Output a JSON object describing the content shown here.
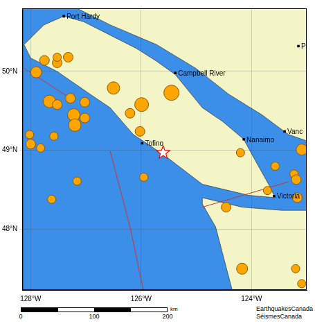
{
  "chart_data": {
    "type": "scatter",
    "xlim": [
      -128.15,
      -123.0
    ],
    "ylim": [
      47.23,
      50.8
    ],
    "xticks": [
      {
        "value": -128,
        "label": "128°W"
      },
      {
        "value": -126,
        "label": "126°W"
      },
      {
        "value": -124,
        "label": "124°W"
      }
    ],
    "yticks": [
      {
        "value": 48,
        "label": "48°N"
      },
      {
        "value": 49,
        "label": "49°N"
      },
      {
        "value": 50,
        "label": "50°N"
      }
    ],
    "grid": true,
    "tick_labels": true,
    "series": [
      {
        "type": "area",
        "color": "#f3f5c6",
        "polygons": [
          [
            [
              -128.12,
              50.34
            ],
            [
              -128.0,
              50.17
            ],
            [
              -127.52,
              50.0
            ],
            [
              -126.92,
              49.71
            ],
            [
              -126.56,
              49.54
            ],
            [
              -126.14,
              49.2
            ],
            [
              -125.6,
              48.95
            ],
            [
              -124.89,
              48.57
            ],
            [
              -124.05,
              48.43
            ],
            [
              -123.57,
              48.4
            ],
            [
              -123.69,
              48.57
            ],
            [
              -123.93,
              48.87
            ],
            [
              -124.14,
              49.14
            ],
            [
              -124.53,
              49.37
            ],
            [
              -124.89,
              49.54
            ],
            [
              -125.38,
              49.96
            ],
            [
              -125.72,
              50.13
            ],
            [
              -126.08,
              50.29
            ],
            [
              -126.56,
              50.46
            ],
            [
              -127.04,
              50.63
            ],
            [
              -127.4,
              50.7
            ],
            [
              -127.76,
              50.59
            ]
          ],
          [
            [
              -127.16,
              50.8
            ],
            [
              -126.56,
              50.59
            ],
            [
              -125.72,
              50.34
            ],
            [
              -125.01,
              50.04
            ],
            [
              -124.41,
              49.71
            ],
            [
              -123.81,
              49.45
            ],
            [
              -123.33,
              49.2
            ],
            [
              -123.0,
              49.12
            ],
            [
              -123.0,
              50.8
            ]
          ],
          [
            [
              -124.89,
              48.4
            ],
            [
              -124.17,
              48.28
            ],
            [
              -123.45,
              48.24
            ],
            [
              -123.0,
              48.24
            ],
            [
              -123.0,
              47.23
            ],
            [
              -124.35,
              47.23
            ],
            [
              -124.65,
              48.03
            ],
            [
              -124.89,
              48.32
            ]
          ]
        ]
      },
      {
        "type": "line",
        "color": "#cc3333",
        "lines": [
          [
            [
              -128.12,
              50.04
            ],
            [
              -127.28,
              49.66
            ]
          ],
          [
            [
              -126.56,
              48.99
            ],
            [
              -126.2,
              48.03
            ],
            [
              -125.96,
              47.23
            ]
          ],
          [
            [
              -124.89,
              48.28
            ],
            [
              -123.33,
              48.6
            ]
          ]
        ]
      },
      {
        "type": "scatter",
        "marker": "circle",
        "color": "#ffa500",
        "x": [
          -127.75,
          -127.52,
          -127.32,
          -127.52,
          -127.9,
          -128.02,
          -128.0,
          -127.82,
          -127.58,
          -127.66,
          -127.52,
          -127.28,
          -127.22,
          -127.2,
          -127.02,
          -127.02,
          -127.16,
          -127.62,
          -126.5,
          -126.2,
          -125.99,
          -125.45,
          -126.02,
          -125.95,
          -124.2,
          -123.57,
          -123.09,
          -123.23,
          -123.19,
          -123.71,
          -123.17,
          -124.46,
          -124.17,
          -123.2,
          -123.09
        ],
        "y": [
          50.14,
          50.11,
          50.18,
          50.18,
          49.99,
          49.2,
          49.08,
          49.03,
          49.18,
          49.62,
          49.58,
          49.66,
          49.45,
          49.32,
          49.41,
          49.61,
          48.61,
          48.38,
          49.79,
          49.47,
          49.58,
          49.73,
          49.24,
          48.66,
          48.97,
          48.8,
          49.01,
          48.7,
          48.63,
          48.49,
          48.4,
          48.28,
          47.5,
          47.5,
          47.31
        ],
        "sizes": [
          3.5,
          3.5,
          3.5,
          3.0,
          4.0,
          3.0,
          3.5,
          3.0,
          3.0,
          4.5,
          3.5,
          3.5,
          4.5,
          4.5,
          3.5,
          3.5,
          3.0,
          3.0,
          4.5,
          3.5,
          5.0,
          5.5,
          3.5,
          3.0,
          3.0,
          3.0,
          4.0,
          3.0,
          3.5,
          3.0,
          3.5,
          3.5,
          4.0,
          3.0,
          3.0
        ]
      },
      {
        "type": "scatter",
        "marker": "square",
        "color": "#000000",
        "x": [
          -127.4,
          -125.38,
          -125.98,
          -124.14,
          -123.4,
          -123.59,
          -123.15
        ],
        "y": [
          50.7,
          49.98,
          49.09,
          49.14,
          49.24,
          48.42,
          50.32
        ],
        "labels": [
          "Port Hardy",
          "Campbell River",
          "Tofino",
          "Nanaimo",
          "Vanc",
          "Victoria",
          "P"
        ]
      },
      {
        "type": "scatter",
        "marker": "star",
        "color": "#ff0000",
        "x": [
          -125.6
        ],
        "y": [
          48.97
        ]
      }
    ],
    "scale_bar": {
      "ticks": [
        0,
        100,
        200
      ],
      "unit": "km"
    },
    "annotations": [
      "EarthquakesCanada",
      "SéismesCanada"
    ]
  }
}
